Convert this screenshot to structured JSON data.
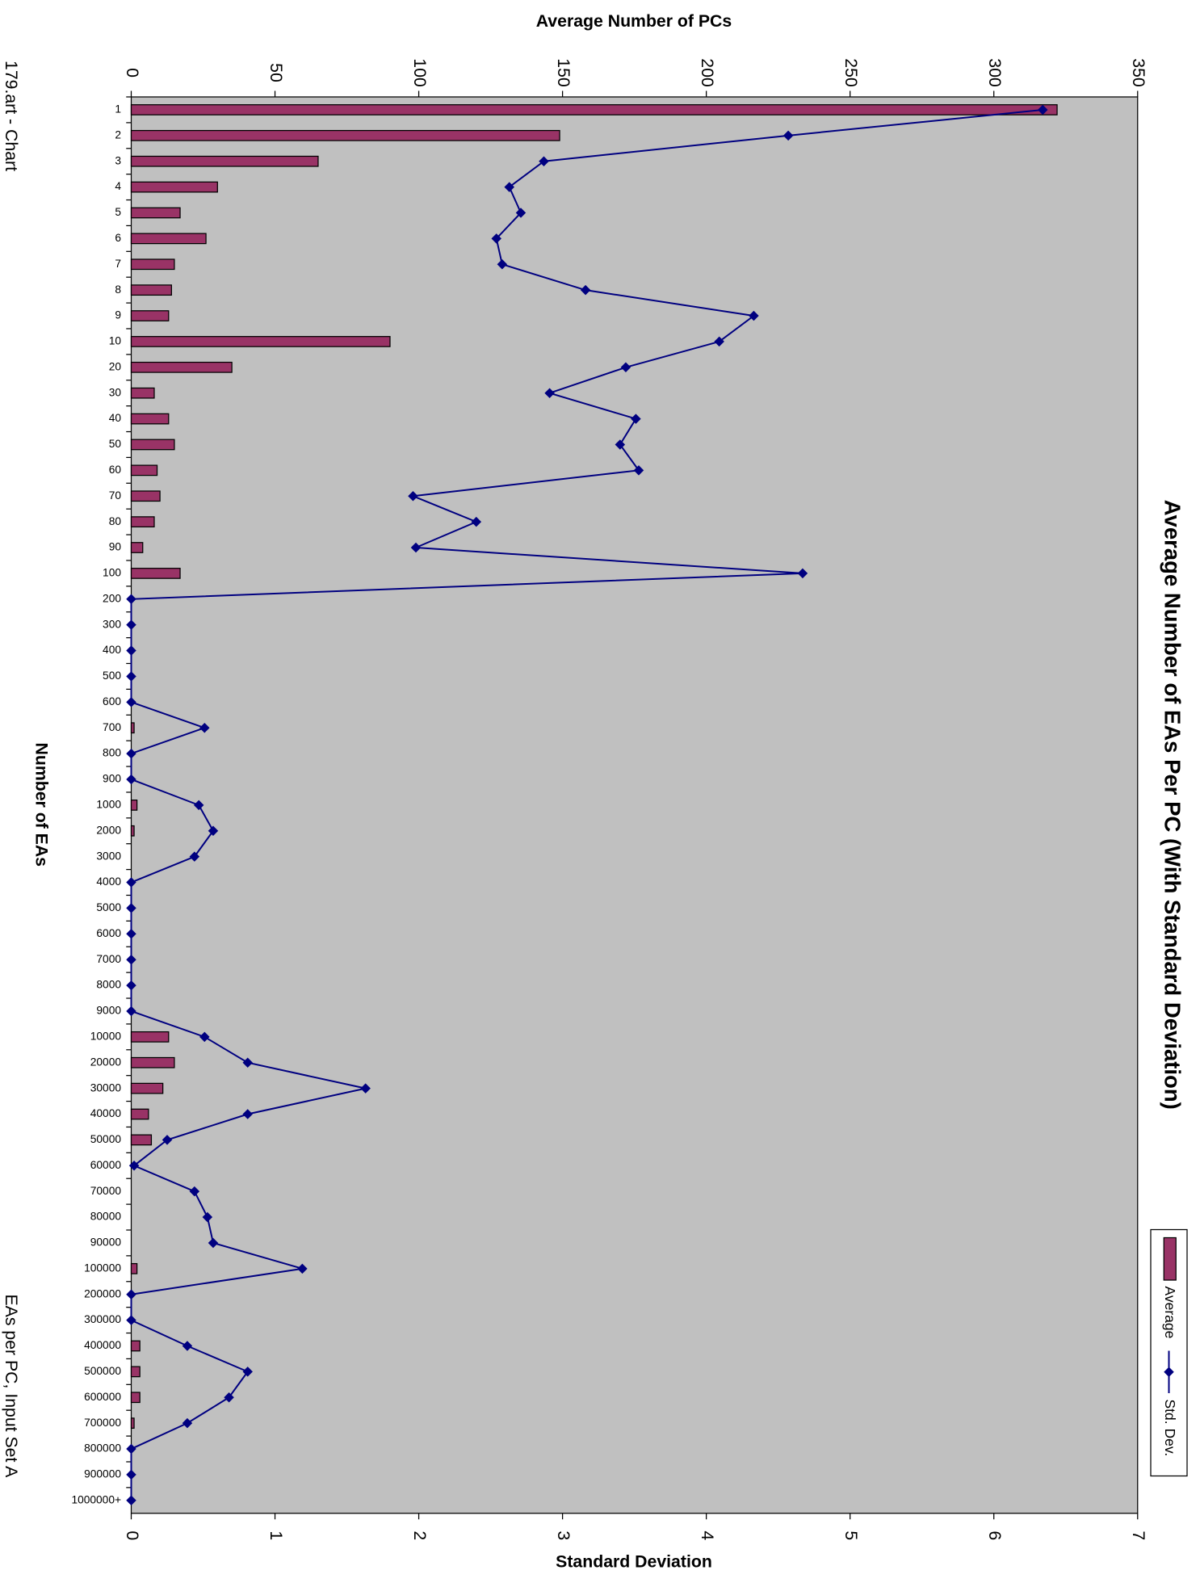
{
  "page_header": "179.art - Chart",
  "page_footer": "EAs per PC, Input Set A",
  "chart_data": {
    "type": "bar",
    "orientation": "horizontal",
    "title": "Average Number of EAs Per PC (With Standard Deviation)",
    "x_label": "Average Number of PCs",
    "x2_label": "Standard Deviation",
    "y_label": "Number of EAs",
    "categories": [
      "1",
      "2",
      "3",
      "4",
      "5",
      "6",
      "7",
      "8",
      "9",
      "10",
      "20",
      "30",
      "40",
      "50",
      "60",
      "70",
      "80",
      "90",
      "100",
      "200",
      "300",
      "400",
      "500",
      "600",
      "700",
      "800",
      "900",
      "1000",
      "2000",
      "3000",
      "4000",
      "5000",
      "6000",
      "7000",
      "8000",
      "9000",
      "10000",
      "20000",
      "30000",
      "40000",
      "50000",
      "60000",
      "70000",
      "80000",
      "90000",
      "100000",
      "200000",
      "300000",
      "400000",
      "500000",
      "600000",
      "700000",
      "800000",
      "900000",
      "1000000+"
    ],
    "series": [
      {
        "name": "Average",
        "type": "bar",
        "axis": "x",
        "color": "#993366",
        "values": [
          322,
          149,
          65,
          30,
          17,
          26,
          15,
          14,
          13,
          90,
          35,
          8,
          13,
          15,
          9,
          10,
          8,
          4,
          17,
          0,
          0,
          0,
          0,
          0,
          1,
          0,
          0,
          2,
          1,
          0,
          0,
          0,
          0,
          0,
          0,
          0,
          13,
          15,
          11,
          6,
          7,
          0,
          0,
          0,
          0,
          2,
          0,
          0,
          3,
          3,
          3,
          1,
          0,
          0,
          0
        ]
      },
      {
        "name": "Std. Dev.",
        "type": "line",
        "axis": "x2",
        "color": "#000080",
        "values": [
          6.34,
          4.57,
          2.87,
          2.63,
          2.71,
          2.54,
          2.58,
          3.16,
          4.33,
          4.09,
          3.44,
          2.91,
          3.51,
          3.4,
          3.53,
          1.96,
          2.4,
          1.98,
          4.67,
          0,
          0,
          0,
          0,
          0,
          0.51,
          0,
          0,
          0.47,
          0.57,
          0.44,
          0,
          0,
          0,
          0,
          0,
          0,
          0.51,
          0.81,
          1.63,
          0.81,
          0.25,
          0.02,
          0.44,
          0.53,
          0.57,
          1.19,
          0,
          0,
          0.39,
          0.81,
          0.68,
          0.39,
          0,
          0,
          0
        ]
      }
    ],
    "xlim": [
      0,
      350
    ],
    "xticks": [
      0,
      50,
      100,
      150,
      200,
      250,
      300,
      350
    ],
    "x2lim": [
      0,
      7
    ],
    "x2ticks": [
      0,
      1,
      2,
      3,
      4,
      5,
      6,
      7
    ],
    "plot_background": "#c0c0c0",
    "legend": "right"
  }
}
